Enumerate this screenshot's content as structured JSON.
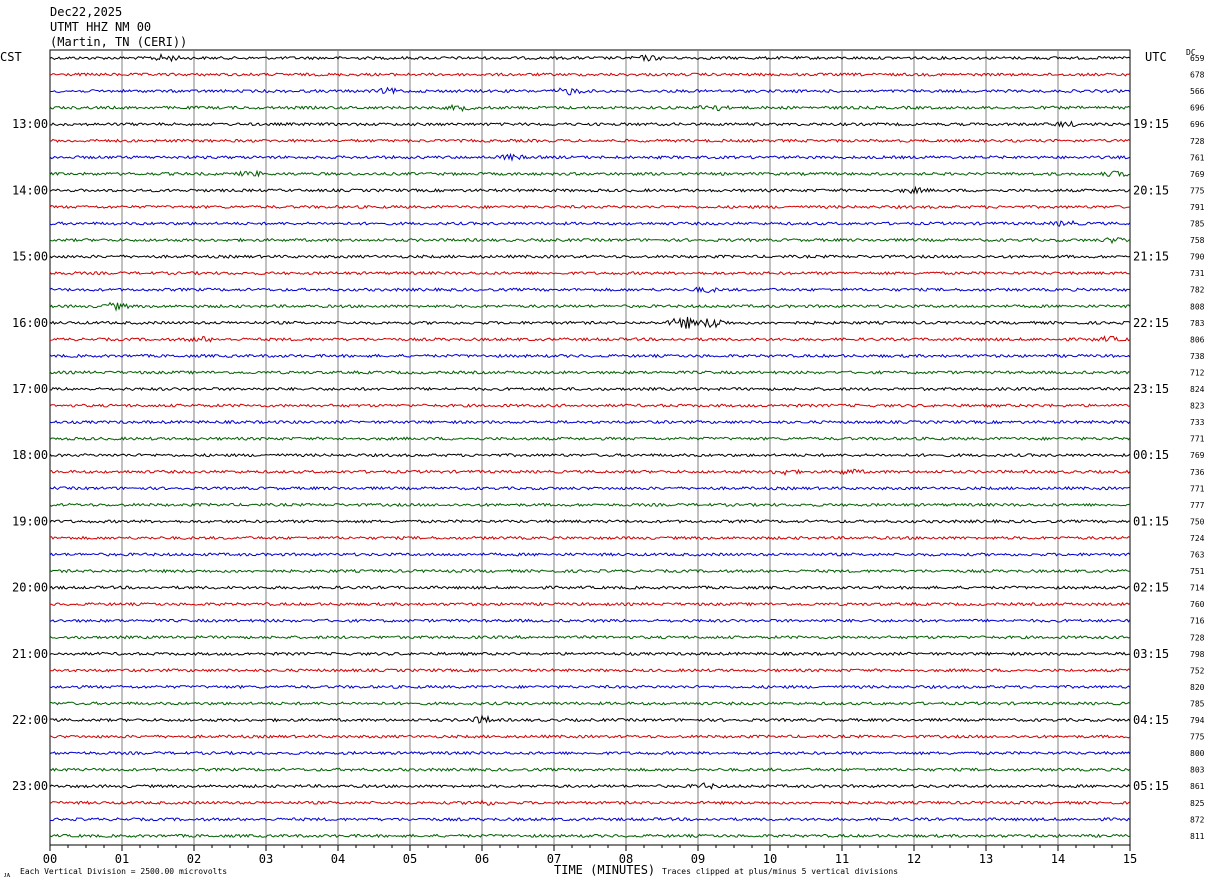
{
  "header": {
    "date": "Dec22,2025",
    "station": "UTMT HHZ NM 00",
    "location": "(Martin, TN (CERI))"
  },
  "labels": {
    "left_tz": "CST",
    "right_tz": "UTC",
    "dc": "DC",
    "corner_mark": "ᴊᴀ"
  },
  "footer": {
    "scale_note": "Each Vertical Division = 2500.00 microvolts",
    "xlabel": "TIME (MINUTES)",
    "clip_note": "Traces clipped at plus/minus 5 vertical divisions"
  },
  "colors": {
    "trace_cycle": [
      "#000000",
      "#d00000",
      "#0000d0",
      "#006000"
    ],
    "grid": "#808080",
    "frame": "#000000",
    "background": "#ffffff"
  },
  "chart_data": {
    "type": "line",
    "title": "UTMT HHZ NM 00",
    "xlabel": "TIME (MINUTES)",
    "ylabel": "",
    "xlim": [
      0,
      15
    ],
    "x_ticks": [
      "00",
      "01",
      "02",
      "03",
      "04",
      "05",
      "06",
      "07",
      "08",
      "09",
      "10",
      "11",
      "12",
      "13",
      "14",
      "15"
    ],
    "rows": 48,
    "left_hour_labels": [
      {
        "row": 4,
        "text": "13:00"
      },
      {
        "row": 8,
        "text": "14:00"
      },
      {
        "row": 12,
        "text": "15:00"
      },
      {
        "row": 16,
        "text": "16:00"
      },
      {
        "row": 20,
        "text": "17:00"
      },
      {
        "row": 24,
        "text": "18:00"
      },
      {
        "row": 28,
        "text": "19:00"
      },
      {
        "row": 32,
        "text": "20:00"
      },
      {
        "row": 36,
        "text": "21:00"
      },
      {
        "row": 40,
        "text": "22:00"
      },
      {
        "row": 44,
        "text": "23:00"
      }
    ],
    "right_hour_labels": [
      {
        "row": 4,
        "text": "19:15"
      },
      {
        "row": 8,
        "text": "20:15"
      },
      {
        "row": 12,
        "text": "21:15"
      },
      {
        "row": 16,
        "text": "22:15"
      },
      {
        "row": 20,
        "text": "23:15"
      },
      {
        "row": 24,
        "text": "00:15"
      },
      {
        "row": 28,
        "text": "01:15"
      },
      {
        "row": 32,
        "text": "02:15"
      },
      {
        "row": 36,
        "text": "03:15"
      },
      {
        "row": 40,
        "text": "04:15"
      },
      {
        "row": 44,
        "text": "05:15"
      }
    ],
    "dc_offsets": [
      "659",
      "678",
      "566",
      "696",
      "696",
      "728",
      "761",
      "769",
      "775",
      "791",
      "785",
      "758",
      "790",
      "731",
      "782",
      "808",
      "783",
      "806",
      "738",
      "712",
      "824",
      "823",
      "733",
      "771",
      "769",
      "736",
      "771",
      "777",
      "750",
      "724",
      "763",
      "751",
      "714",
      "760",
      "716",
      "728",
      "798",
      "752",
      "820",
      "785",
      "794",
      "775",
      "800",
      "803",
      "861",
      "825",
      "872",
      "811"
    ],
    "events": [
      {
        "row": 0,
        "minute": 1.6,
        "amp": 3
      },
      {
        "row": 0,
        "minute": 8.3,
        "amp": 2
      },
      {
        "row": 2,
        "minute": 7.2,
        "amp": 3
      },
      {
        "row": 2,
        "minute": 4.7,
        "amp": 2
      },
      {
        "row": 3,
        "minute": 9.2,
        "amp": 3
      },
      {
        "row": 3,
        "minute": 5.7,
        "amp": 2
      },
      {
        "row": 4,
        "minute": 14.1,
        "amp": 2
      },
      {
        "row": 6,
        "minute": 6.4,
        "amp": 2
      },
      {
        "row": 7,
        "minute": 2.8,
        "amp": 2
      },
      {
        "row": 7,
        "minute": 14.8,
        "amp": 2
      },
      {
        "row": 8,
        "minute": 12.0,
        "amp": 2
      },
      {
        "row": 10,
        "minute": 14.1,
        "amp": 2
      },
      {
        "row": 11,
        "minute": 14.8,
        "amp": 2
      },
      {
        "row": 14,
        "minute": 9.1,
        "amp": 2
      },
      {
        "row": 15,
        "minute": 0.9,
        "amp": 3
      },
      {
        "row": 16,
        "minute": 8.8,
        "amp": 6
      },
      {
        "row": 16,
        "minute": 9.2,
        "amp": 5
      },
      {
        "row": 17,
        "minute": 2.1,
        "amp": 2
      },
      {
        "row": 17,
        "minute": 14.7,
        "amp": 2
      },
      {
        "row": 25,
        "minute": 10.2,
        "amp": 2
      },
      {
        "row": 25,
        "minute": 11.1,
        "amp": 2
      },
      {
        "row": 40,
        "minute": 6.0,
        "amp": 3
      },
      {
        "row": 44,
        "minute": 9.1,
        "amp": 2
      },
      {
        "row": 45,
        "minute": 6.0,
        "amp": 2
      }
    ]
  }
}
